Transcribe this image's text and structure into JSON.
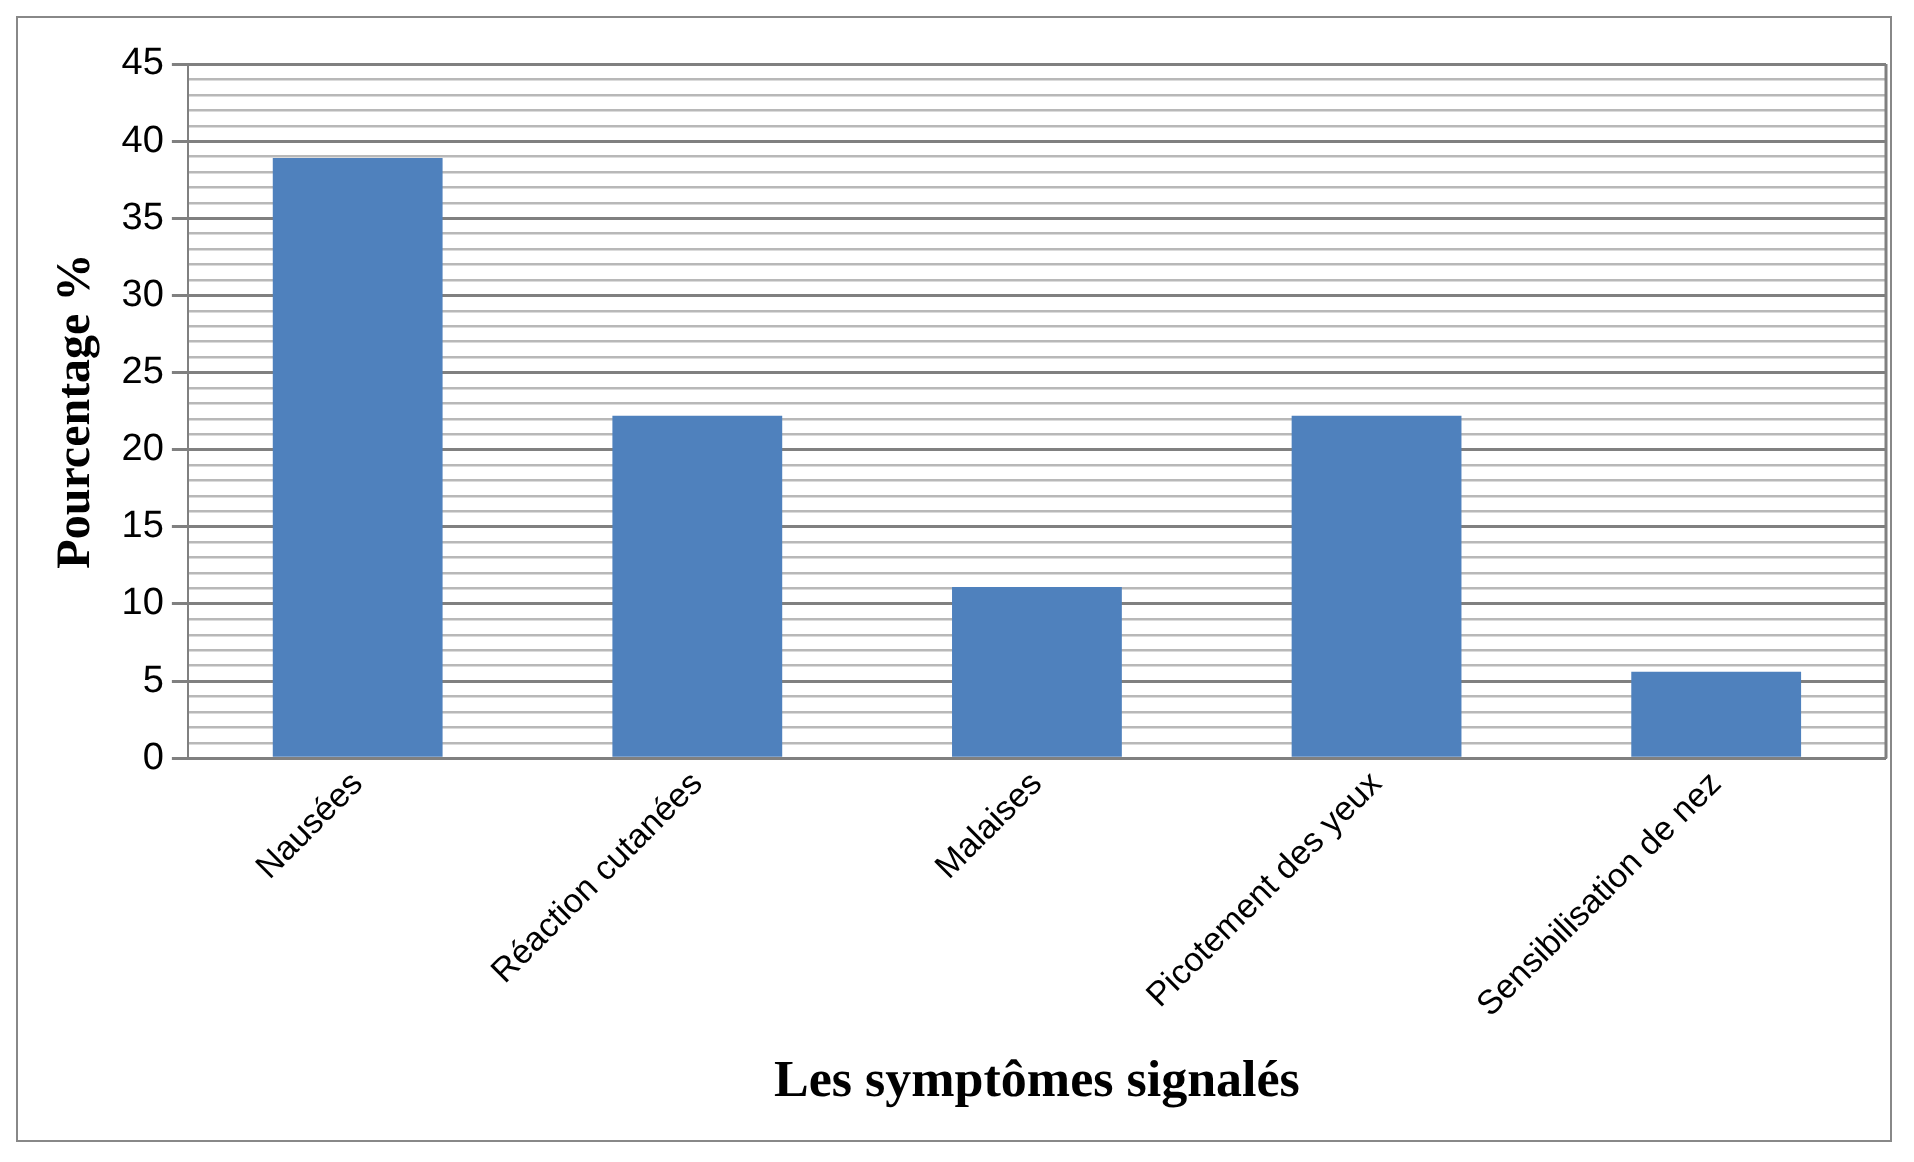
{
  "chart_data": {
    "type": "bar",
    "xlabel": "Les symptômes signalés",
    "ylabel": "Pourcentage %",
    "categories": [
      "Nausées",
      "Réaction cutanées",
      "Malaises",
      "Picotement des yeux",
      "Sensibilisation de nez"
    ],
    "values": [
      38.9,
      22.2,
      11.1,
      22.2,
      5.6
    ],
    "color": "#4f81bd",
    "ylim": [
      0,
      45
    ],
    "yticks": [
      0,
      {
        "value": 1,
        "label": null
      },
      {
        "value": 2,
        "label": null
      },
      {
        "value": 3,
        "label": null
      },
      {
        "value": 4,
        "label": null
      },
      5,
      {
        "value": 6,
        "label": null
      },
      {
        "value": 7,
        "label": null
      },
      {
        "value": 8,
        "label": null
      },
      {
        "value": 9,
        "label": null
      },
      10,
      {
        "value": 11,
        "label": null
      },
      {
        "value": 12,
        "label": null
      },
      {
        "value": 13,
        "label": null
      },
      {
        "value": 14,
        "label": null
      },
      15,
      {
        "value": 16,
        "label": null
      },
      {
        "value": 17,
        "label": null
      },
      {
        "value": 18,
        "label": null
      },
      {
        "value": 19,
        "label": null
      },
      20,
      {
        "value": 21,
        "label": null
      },
      {
        "value": 22,
        "label": null
      },
      {
        "value": 23,
        "label": null
      },
      {
        "value": 24,
        "label": null
      },
      25,
      {
        "value": 26,
        "label": null
      },
      {
        "value": 27,
        "label": null
      },
      {
        "value": 28,
        "label": null
      },
      {
        "value": 29,
        "label": null
      },
      30,
      {
        "value": 31,
        "label": null
      },
      {
        "value": 32,
        "label": null
      },
      {
        "value": 33,
        "label": null
      },
      {
        "value": 34,
        "label": null
      },
      35,
      {
        "value": 36,
        "label": null
      },
      {
        "value": 37,
        "label": null
      },
      {
        "value": 38,
        "label": null
      },
      {
        "value": 39,
        "label": null
      },
      40,
      {
        "value": 41,
        "label": null
      },
      {
        "value": 42,
        "label": null
      },
      {
        "value": 43,
        "label": null
      },
      {
        "value": 44,
        "label": null
      },
      45
    ],
    "grid": true
  }
}
